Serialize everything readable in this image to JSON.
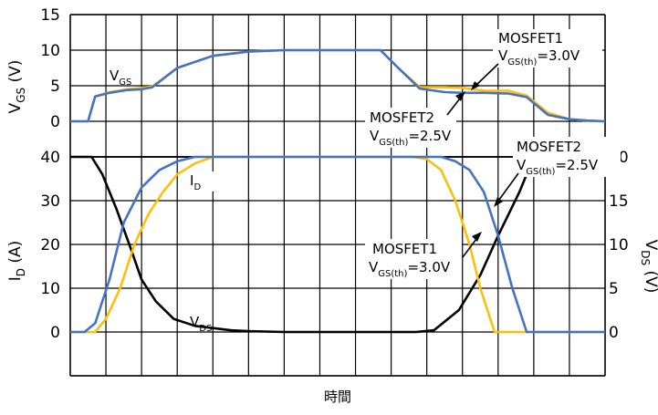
{
  "chart_data": [
    {
      "type": "line",
      "panel": "upper",
      "ylabel": "VGS (V)",
      "ylabel_main": "V",
      "ylabel_sub": "GS",
      "ylabel_unit": " (V)",
      "ylim": [
        -5,
        15
      ],
      "y_ticks": [
        "15",
        "10",
        "5",
        "0"
      ],
      "grid": true,
      "series": [
        {
          "name": "MOSFET1",
          "color": "#ffbe0a",
          "x": [
            0,
            0.5,
            0.7,
            1.1,
            1.6,
            2.0,
            2.3,
            3,
            4,
            5,
            6,
            7,
            8,
            8.7,
            9.2,
            9.8,
            10.5,
            11,
            11.6,
            12.3,
            12.8,
            13.4,
            14.0,
            14.5,
            15
          ],
          "y": [
            0,
            0,
            3.5,
            4.1,
            4.5,
            4.7,
            4.9,
            7.5,
            9.2,
            9.8,
            10,
            10,
            10,
            10,
            7.5,
            4.8,
            4.8,
            4.7,
            4.3,
            4.3,
            3.6,
            1.2,
            0.3,
            0.1,
            0
          ]
        },
        {
          "name": "MOSFET2",
          "color": "#4472c4",
          "x": [
            0,
            0.5,
            0.7,
            1.1,
            1.6,
            2.0,
            2.3,
            3,
            4,
            5,
            6,
            7,
            8,
            8.7,
            9.2,
            9.8,
            10.5,
            11,
            11.6,
            12.3,
            12.8,
            13.4,
            14.0,
            14.5,
            15
          ],
          "y": [
            0,
            0,
            3.5,
            4.0,
            4.4,
            4.5,
            4.8,
            7.5,
            9.2,
            9.8,
            10,
            10,
            10,
            10,
            7.5,
            4.6,
            4.1,
            4.0,
            4.0,
            3.9,
            3.4,
            0.9,
            0.3,
            0.1,
            0
          ]
        }
      ],
      "annotations": [
        {
          "main": "V",
          "sub": "GS",
          "rest": ""
        },
        {
          "main": "MOSFET1",
          "sub": "",
          "rest": ""
        },
        {
          "main": "V",
          "sub": "GS(th)",
          "rest": "=3.0V"
        },
        {
          "main": "MOSFET2",
          "sub": "",
          "rest": ""
        },
        {
          "main": "V",
          "sub": "GS(th)",
          "rest": "=2.5V"
        }
      ]
    },
    {
      "type": "line",
      "panel": "lower",
      "ylabel": "ID (A)",
      "ylabel_main": "I",
      "ylabel_sub": "D",
      "ylabel_unit": " (A)",
      "y2label": "VDS (V)",
      "y2label_main": "V",
      "y2label_sub": "DS",
      "y2label_unit": " (V)",
      "xlabel": "時間",
      "ylim": [
        -10,
        40
      ],
      "y2lim": [
        -5,
        20
      ],
      "y_ticks": [
        "40",
        "30",
        "20",
        "10",
        "0"
      ],
      "y2_ticks": [
        "20",
        "15",
        "10",
        "5",
        "0"
      ],
      "grid": true,
      "series": [
        {
          "name": "VDS",
          "axis": "right",
          "color": "#000000",
          "x": [
            0,
            0.6,
            0.9,
            1.3,
            1.7,
            2.0,
            2.4,
            2.9,
            3.5,
            4.5,
            5,
            6,
            7,
            8,
            9,
            9.7,
            10.2,
            10.9,
            11.5,
            12.0,
            12.6,
            12.9,
            13.1,
            13.3,
            13.6,
            14,
            15
          ],
          "y": [
            20,
            20,
            18,
            14,
            9.5,
            6,
            3.5,
            1.5,
            0.7,
            0.2,
            0.1,
            0,
            0,
            0,
            0,
            0,
            0.2,
            2.5,
            6.5,
            11,
            16,
            19,
            21.5,
            20,
            19.6,
            19.6,
            19.6
          ]
        },
        {
          "name": "MOSFET1",
          "axis": "left",
          "color": "#ffbe0a",
          "x": [
            0,
            0.7,
            1.0,
            1.4,
            1.8,
            2.2,
            2.6,
            3.0,
            3.5,
            4.0,
            4.5,
            5,
            6,
            7,
            8,
            9,
            9.6,
            10.0,
            10.4,
            10.8,
            11.2,
            11.5,
            11.9,
            12.5,
            15
          ],
          "y": [
            0,
            0,
            3,
            10,
            20,
            27,
            32,
            36,
            38.5,
            40,
            40,
            40,
            40,
            40,
            40,
            40,
            40,
            39.5,
            37,
            30,
            20,
            10,
            0,
            0,
            0
          ]
        },
        {
          "name": "MOSFET2",
          "axis": "left",
          "color": "#4472c4",
          "x": [
            0,
            0.4,
            0.7,
            1.1,
            1.5,
            2.0,
            2.5,
            3.0,
            3.5,
            4.0,
            5,
            6,
            7,
            8,
            9,
            10.0,
            10.4,
            10.8,
            11.2,
            11.6,
            12.0,
            12.4,
            12.8,
            15
          ],
          "y": [
            0,
            0,
            2,
            12,
            25,
            33,
            37,
            39,
            40,
            40,
            40,
            40,
            40,
            40,
            40,
            40,
            40,
            39,
            37,
            32,
            22,
            10,
            0,
            0
          ]
        }
      ],
      "annotations": [
        {
          "main": "I",
          "sub": "D",
          "rest": ""
        },
        {
          "main": "V",
          "sub": "DS",
          "rest": ""
        },
        {
          "main": "MOSFET2",
          "sub": "",
          "rest": ""
        },
        {
          "main": "V",
          "sub": "GS(th)",
          "rest": "=2.5V"
        },
        {
          "main": "MOSFET1",
          "sub": "",
          "rest": ""
        },
        {
          "main": "V",
          "sub": "GS(th)",
          "rest": "=3.0V"
        }
      ]
    }
  ]
}
